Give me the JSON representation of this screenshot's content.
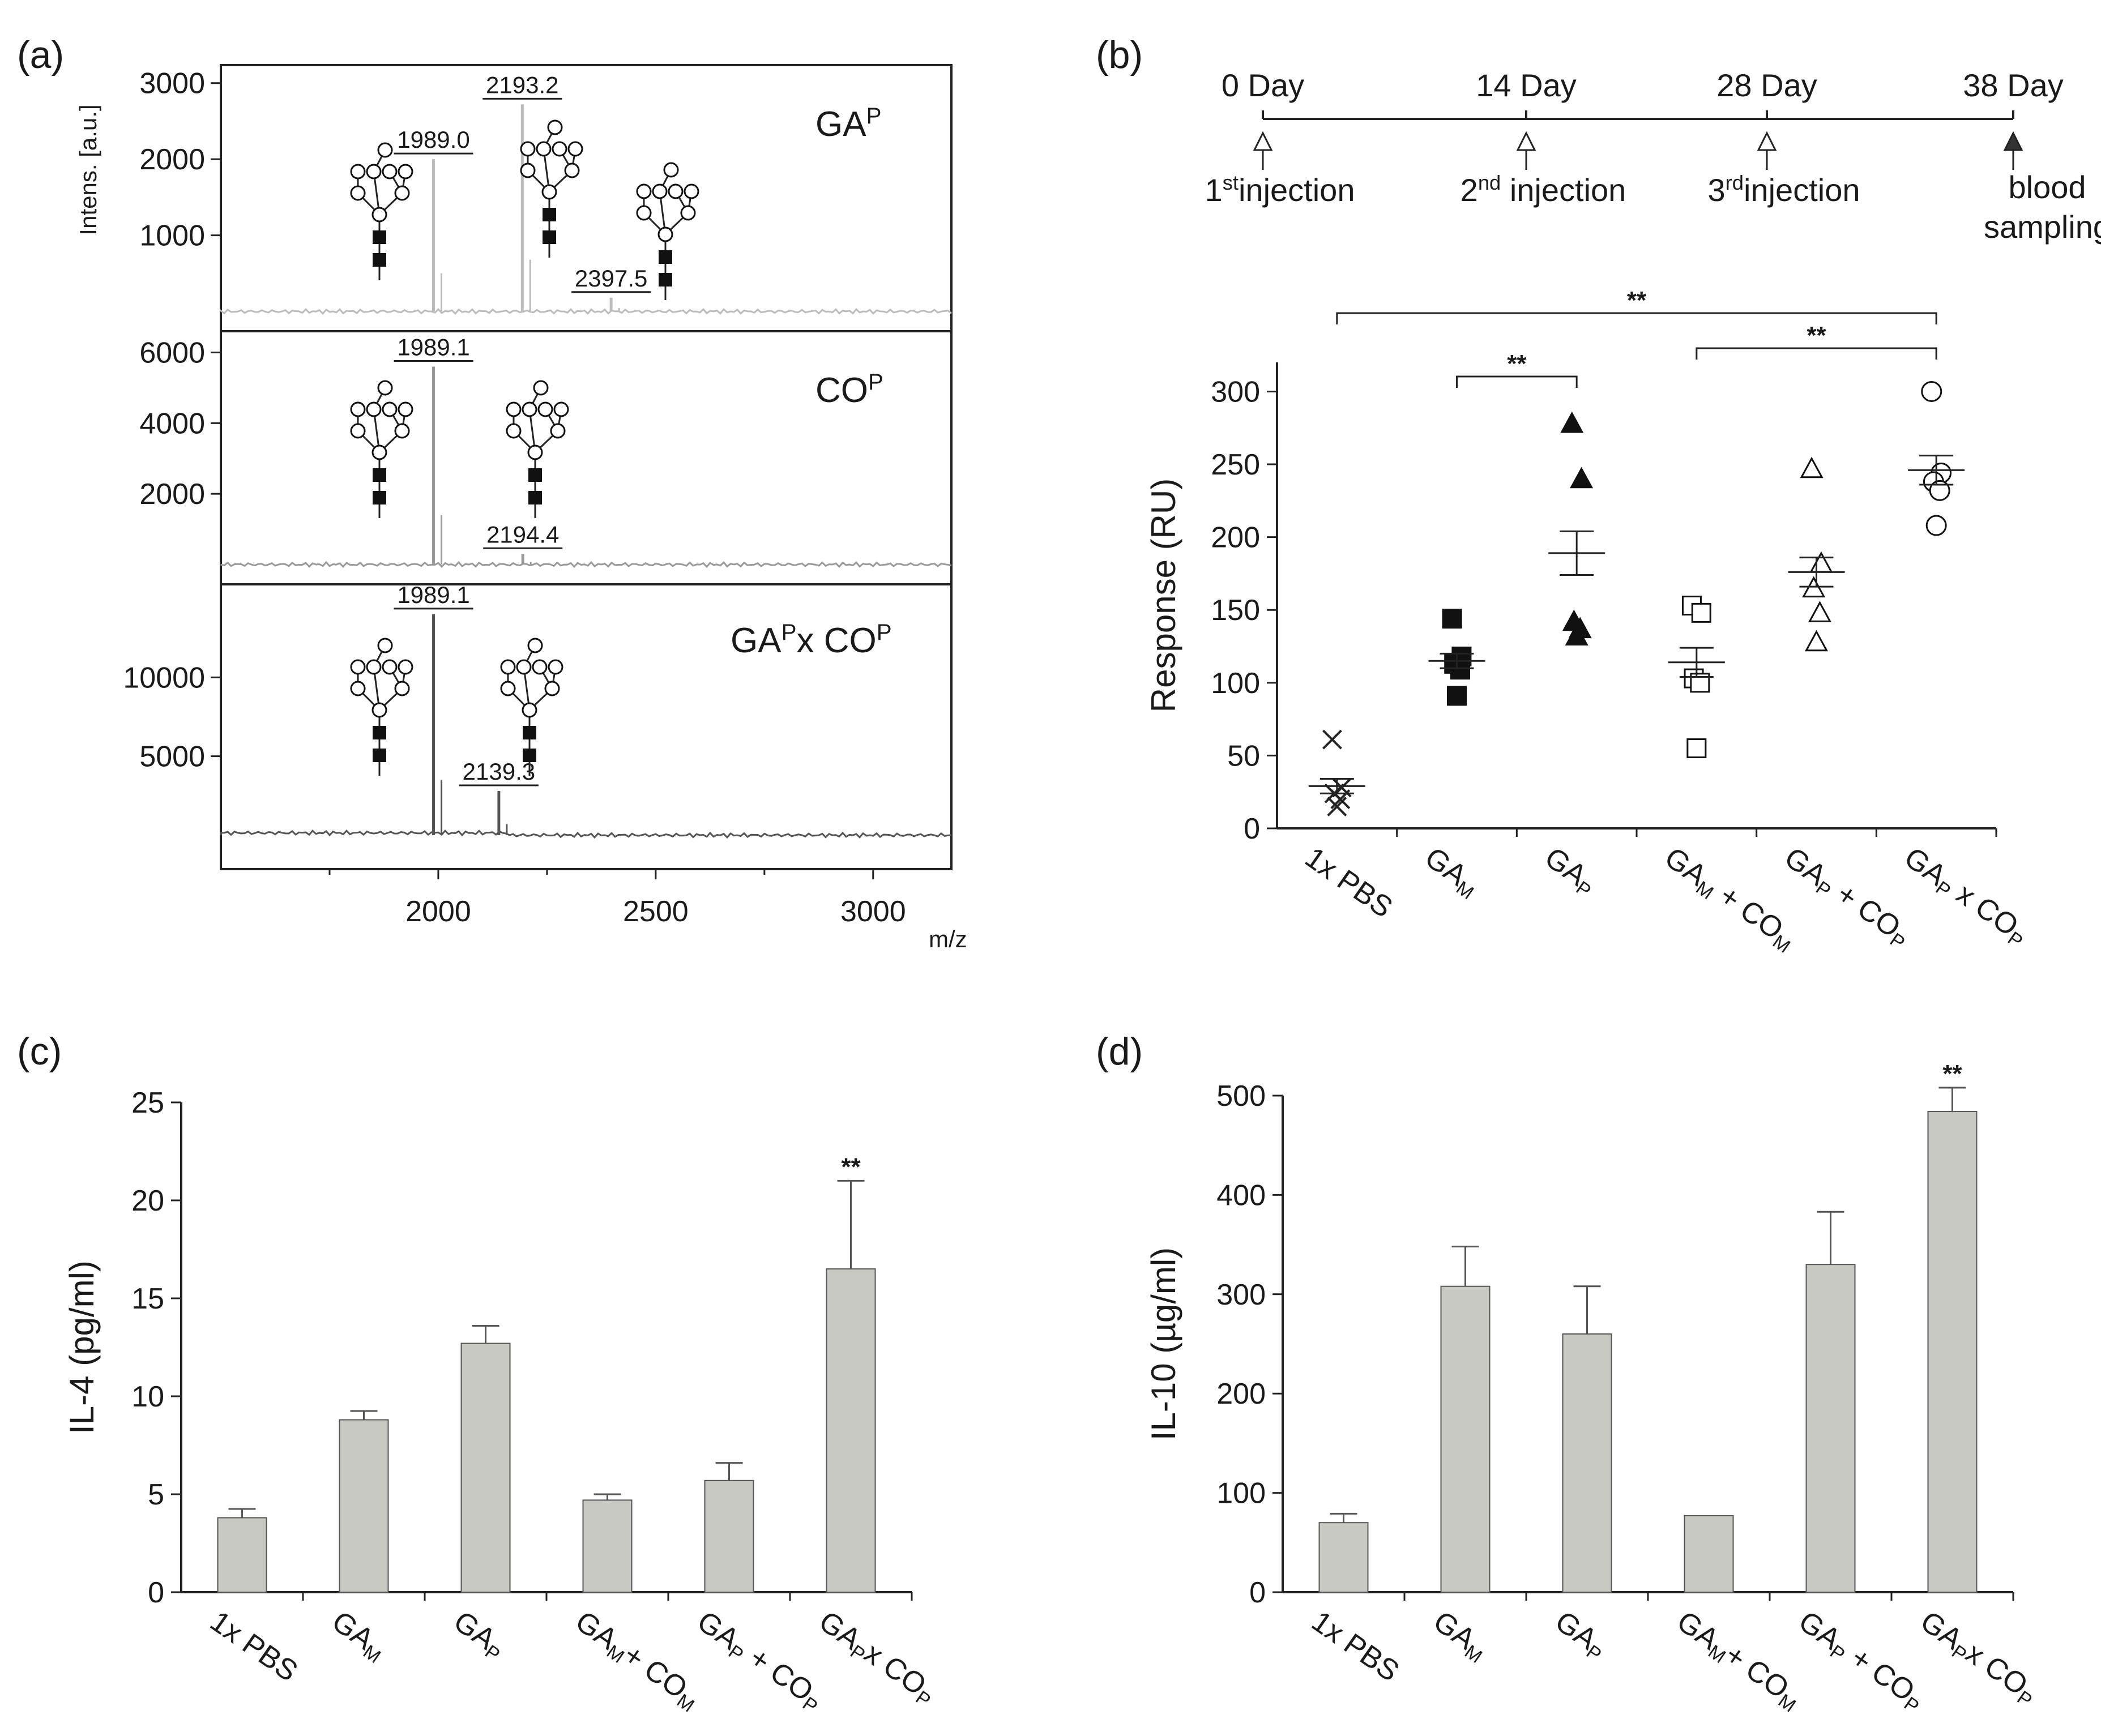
{
  "panel_labels": [
    "(a)",
    "(b)",
    "(c)",
    "(d)"
  ],
  "icons": {
    "hexose": "open-circle-icon",
    "hexnac": "filled-square-icon"
  },
  "colors": {
    "bar_fill": "#c8c9c2",
    "bar_stroke": "#555555",
    "axis": "#222222",
    "spectrum_1": "#bcbcbc",
    "spectrum_2": "#9a9a9a",
    "spectrum_3": "#555555"
  },
  "timeline": {
    "days": [
      "0 Day",
      "14 Day",
      "28 Day",
      "38 Day"
    ],
    "events": [
      {
        "base": "1",
        "sup": "st",
        "tail": "injection"
      },
      {
        "base": "2",
        "sup": "nd",
        "tail": " injection"
      },
      {
        "base": "3",
        "sup": "rd",
        "tail": "injection"
      },
      {
        "line1": "blood",
        "line2": "sampling"
      }
    ]
  },
  "chart_data": [
    {
      "type": "line",
      "panel": "(a)",
      "ylabel": "Intens. [a.u.]",
      "xlabel_unit": "m/z",
      "xlim": [
        1500,
        3180
      ],
      "x_ticks": [
        2000,
        2500,
        3000
      ],
      "spectra": [
        {
          "base": "GA",
          "sup": "P",
          "ylim": [
            0,
            3050
          ],
          "y_ticks": [
            1000,
            2000,
            3000
          ],
          "peaks": [
            {
              "x": 1989.0,
              "y": 2000,
              "label": "1989.0"
            },
            {
              "x": 2193.2,
              "y": 2720,
              "label": "2193.2"
            },
            {
              "x": 2397.5,
              "y": 180,
              "label": "2397.5"
            }
          ]
        },
        {
          "base": "CO",
          "sup": "P",
          "ylim": [
            0,
            6200
          ],
          "y_ticks": [
            2000,
            4000,
            6000
          ],
          "peaks": [
            {
              "x": 1989.1,
              "y": 5600,
              "label": "1989.1"
            },
            {
              "x": 2194.4,
              "y": 300,
              "label": "2194.4"
            }
          ]
        },
        {
          "base": "GA",
          "sup": "P",
          "mid": "x CO",
          "sup2": "P",
          "ylim": [
            0,
            15000
          ],
          "y_ticks": [
            5000,
            10000
          ],
          "peaks": [
            {
              "x": 1989.1,
              "y": 14000,
              "label": "1989.1"
            },
            {
              "x": 2139.3,
              "y": 2800,
              "label": "2139.3"
            }
          ]
        }
      ]
    },
    {
      "type": "scatter",
      "panel": "(b)",
      "ylabel": "Response (RU)",
      "ylim": [
        0,
        320
      ],
      "y_ticks": [
        0,
        50,
        100,
        150,
        200,
        250,
        300
      ],
      "categories": [
        {
          "base": "1x PBS"
        },
        {
          "base": "GA",
          "sub": "M"
        },
        {
          "base": "GA",
          "sub": "P"
        },
        {
          "base": "GA",
          "sub": "M",
          "mid": " + CO",
          "sub2": "M"
        },
        {
          "base": "GA",
          "sub": "P",
          "mid": " + CO",
          "sub2": "P"
        },
        {
          "base": "GA",
          "sub": "P",
          "mid": " x CO",
          "sub2": "P"
        }
      ],
      "series": [
        {
          "marker": "x-cross",
          "values": [
            61,
            28,
            24,
            20,
            15
          ],
          "mean": 29,
          "sem": 5
        },
        {
          "marker": "filled-square",
          "values": [
            144,
            118,
            113,
            109,
            91
          ],
          "mean": 115,
          "sem": 5
        },
        {
          "marker": "filled-triangle",
          "values": [
            278,
            240,
            142,
            137,
            132
          ],
          "mean": 189,
          "sem": 15
        },
        {
          "marker": "open-square",
          "values": [
            153,
            148,
            103,
            100,
            55
          ],
          "mean": 114,
          "sem": 10
        },
        {
          "marker": "open-triangle",
          "values": [
            247,
            182,
            165,
            148,
            128
          ],
          "mean": 176,
          "sem": 10
        },
        {
          "marker": "open-circle",
          "values": [
            300,
            244,
            238,
            232,
            208
          ],
          "mean": 246,
          "sem": 10
        }
      ],
      "significance": [
        {
          "from": 1,
          "to": 2,
          "label": "**"
        },
        {
          "from": 3,
          "to": 5,
          "label": "**"
        },
        {
          "from": 0,
          "to": 5,
          "label": "**"
        }
      ]
    },
    {
      "type": "bar",
      "panel": "(c)",
      "ylabel": "IL-4 (pg/ml)",
      "ylim": [
        0,
        25
      ],
      "y_ticks": [
        0,
        5,
        10,
        15,
        20,
        25
      ],
      "categories": [
        {
          "base": "1x PBS"
        },
        {
          "base": "GA",
          "sub": "M"
        },
        {
          "base": "GA",
          "sub": "P"
        },
        {
          "base": "GA",
          "sub": "M",
          "mid": "+ CO",
          "sub2": "M"
        },
        {
          "base": "GA",
          "sub": "P",
          "mid": " + CO",
          "sub2": "P"
        },
        {
          "base": "GA",
          "sub": "P",
          "mid": "x CO",
          "sub2": "P"
        }
      ],
      "values": [
        3.8,
        8.8,
        12.7,
        4.7,
        5.7,
        16.5
      ],
      "errors": [
        0.45,
        0.45,
        0.9,
        0.3,
        0.9,
        4.5
      ],
      "annotations": [
        {
          "index": 5,
          "label": "**"
        }
      ]
    },
    {
      "type": "bar",
      "panel": "(d)",
      "ylabel": "IL-10 (µg/ml)",
      "ylim": [
        0,
        500
      ],
      "y_ticks": [
        0,
        100,
        200,
        300,
        400,
        500
      ],
      "categories": [
        {
          "base": "1x PBS"
        },
        {
          "base": "GA",
          "sub": "M"
        },
        {
          "base": "GA",
          "sub": "P"
        },
        {
          "base": "GA",
          "sub": "M",
          "mid": "+ CO",
          "sub2": "M"
        },
        {
          "base": "GA",
          "sub": "P",
          "mid": " + CO",
          "sub2": "P"
        },
        {
          "base": "GA",
          "sub": "P",
          "mid": "x CO",
          "sub2": "P"
        }
      ],
      "values": [
        70,
        308,
        260,
        77,
        330,
        484
      ],
      "errors": [
        9,
        40,
        48,
        0,
        53,
        24
      ],
      "annotations": [
        {
          "index": 5,
          "label": "**"
        }
      ]
    }
  ]
}
